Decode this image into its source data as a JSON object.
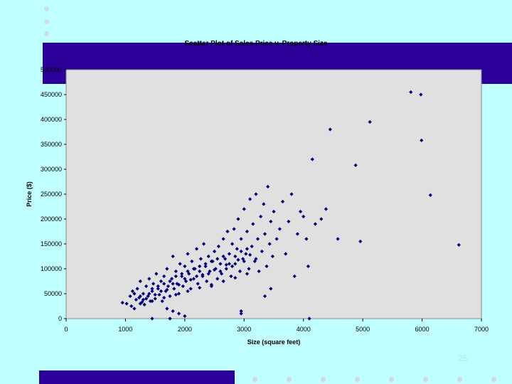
{
  "slide": {
    "page_number": "25",
    "background_color": "#c0ffff",
    "accent_color": "#2a0099"
  },
  "chart_data": {
    "type": "scatter",
    "title": "Scatter Plot of Sales Price v. Property Size",
    "xlabel": "Size (square feet)",
    "ylabel": "Price ($)",
    "xlim": [
      0,
      7000
    ],
    "ylim": [
      0,
      500000
    ],
    "x_ticks": [
      "0",
      "1000",
      "2000",
      "3000",
      "4000",
      "5000",
      "6000",
      "7000"
    ],
    "y_ticks": [
      "0",
      "50000",
      "100000",
      "150000",
      "200000",
      "250000",
      "300000",
      "350000",
      "400000",
      "450000",
      "500000"
    ],
    "marker_color": "#000080",
    "plot_background": "#e0e0e0",
    "grid": false,
    "legend": "none",
    "points": [
      [
        950,
        32000
      ],
      [
        1020,
        30000
      ],
      [
        1080,
        45000
      ],
      [
        1100,
        25000
      ],
      [
        1120,
        55000
      ],
      [
        1150,
        20000
      ],
      [
        1180,
        38000
      ],
      [
        1200,
        60000
      ],
      [
        1230,
        42000
      ],
      [
        1250,
        75000
      ],
      [
        1280,
        33000
      ],
      [
        1300,
        50000
      ],
      [
        1320,
        28000
      ],
      [
        1350,
        65000
      ],
      [
        1380,
        45000
      ],
      [
        1400,
        80000
      ],
      [
        1420,
        35000
      ],
      [
        1450,
        55000
      ],
      [
        1470,
        70000
      ],
      [
        1500,
        40000
      ],
      [
        1520,
        90000
      ],
      [
        1550,
        60000
      ],
      [
        1570,
        48000
      ],
      [
        1600,
        75000
      ],
      [
        1620,
        35000
      ],
      [
        1650,
        85000
      ],
      [
        1680,
        55000
      ],
      [
        1700,
        100000
      ],
      [
        1720,
        65000
      ],
      [
        1750,
        45000
      ],
      [
        1780,
        80000
      ],
      [
        1800,
        125000
      ],
      [
        1820,
        60000
      ],
      [
        1850,
        95000
      ],
      [
        1870,
        70000
      ],
      [
        1900,
        50000
      ],
      [
        1920,
        110000
      ],
      [
        1950,
        85000
      ],
      [
        1970,
        65000
      ],
      [
        2000,
        105000
      ],
      [
        2020,
        75000
      ],
      [
        2050,
        130000
      ],
      [
        2070,
        90000
      ],
      [
        2100,
        60000
      ],
      [
        2120,
        115000
      ],
      [
        2150,
        80000
      ],
      [
        2170,
        100000
      ],
      [
        2200,
        140000
      ],
      [
        2220,
        70000
      ],
      [
        2250,
        95000
      ],
      [
        2270,
        120000
      ],
      [
        2300,
        85000
      ],
      [
        2320,
        150000
      ],
      [
        2350,
        105000
      ],
      [
        2370,
        75000
      ],
      [
        2400,
        125000
      ],
      [
        2420,
        95000
      ],
      [
        2450,
        65000
      ],
      [
        2470,
        115000
      ],
      [
        2500,
        135000
      ],
      [
        2520,
        100000
      ],
      [
        2550,
        80000
      ],
      [
        2570,
        145000
      ],
      [
        2600,
        110000
      ],
      [
        2620,
        90000
      ],
      [
        2650,
        160000
      ],
      [
        2680,
        120000
      ],
      [
        2700,
        100000
      ],
      [
        2720,
        175000
      ],
      [
        2750,
        130000
      ],
      [
        2780,
        85000
      ],
      [
        2800,
        150000
      ],
      [
        2830,
        180000
      ],
      [
        2850,
        110000
      ],
      [
        2880,
        140000
      ],
      [
        2900,
        200000
      ],
      [
        2930,
        95000
      ],
      [
        2950,
        160000
      ],
      [
        2980,
        120000
      ],
      [
        3000,
        220000
      ],
      [
        3030,
        130000
      ],
      [
        3050,
        175000
      ],
      [
        3080,
        100000
      ],
      [
        3100,
        240000
      ],
      [
        3130,
        145000
      ],
      [
        3150,
        190000
      ],
      [
        3180,
        115000
      ],
      [
        3200,
        250000
      ],
      [
        3230,
        160000
      ],
      [
        3250,
        95000
      ],
      [
        3280,
        205000
      ],
      [
        3300,
        135000
      ],
      [
        3330,
        230000
      ],
      [
        3350,
        170000
      ],
      [
        3380,
        105000
      ],
      [
        3400,
        265000
      ],
      [
        3430,
        150000
      ],
      [
        3450,
        195000
      ],
      [
        3480,
        125000
      ],
      [
        3500,
        215000
      ],
      [
        3550,
        160000
      ],
      [
        3600,
        180000
      ],
      [
        3650,
        235000
      ],
      [
        3700,
        130000
      ],
      [
        3750,
        195000
      ],
      [
        3800,
        250000
      ],
      [
        3850,
        85000
      ],
      [
        3900,
        170000
      ],
      [
        3950,
        215000
      ],
      [
        4000,
        205000
      ],
      [
        4050,
        160000
      ],
      [
        4080,
        105000
      ],
      [
        4100,
        0
      ],
      [
        4150,
        320000
      ],
      [
        4200,
        190000
      ],
      [
        4300,
        200000
      ],
      [
        4380,
        220000
      ],
      [
        4450,
        380000
      ],
      [
        4580,
        160000
      ],
      [
        4880,
        308000
      ],
      [
        4960,
        155000
      ],
      [
        5120,
        395000
      ],
      [
        5810,
        455000
      ],
      [
        5980,
        450000
      ],
      [
        5990,
        358000
      ],
      [
        6140,
        248000
      ],
      [
        6620,
        148000
      ],
      [
        1150,
        50000
      ],
      [
        1250,
        45000
      ],
      [
        1350,
        40000
      ],
      [
        1450,
        60000
      ],
      [
        1550,
        65000
      ],
      [
        1650,
        70000
      ],
      [
        1750,
        75000
      ],
      [
        1850,
        85000
      ],
      [
        1950,
        90000
      ],
      [
        2050,
        95000
      ],
      [
        2150,
        100000
      ],
      [
        2250,
        105000
      ],
      [
        2350,
        110000
      ],
      [
        2450,
        115000
      ],
      [
        2550,
        120000
      ],
      [
        2650,
        125000
      ],
      [
        2750,
        110000
      ],
      [
        2850,
        125000
      ],
      [
        2950,
        135000
      ],
      [
        3050,
        140000
      ],
      [
        1400,
        50000
      ],
      [
        1600,
        55000
      ],
      [
        1800,
        70000
      ],
      [
        2000,
        80000
      ],
      [
        2200,
        85000
      ],
      [
        2400,
        90000
      ],
      [
        2600,
        95000
      ],
      [
        2800,
        105000
      ],
      [
        3000,
        115000
      ],
      [
        3200,
        120000
      ],
      [
        1300,
        38000
      ],
      [
        1500,
        48000
      ],
      [
        1700,
        58000
      ],
      [
        1900,
        68000
      ],
      [
        2100,
        78000
      ],
      [
        2300,
        88000
      ],
      [
        2500,
        98000
      ],
      [
        2700,
        108000
      ],
      [
        2900,
        118000
      ],
      [
        3100,
        128000
      ],
      [
        1250,
        30000
      ],
      [
        1450,
        35000
      ],
      [
        1650,
        42000
      ],
      [
        1850,
        48000
      ],
      [
        2050,
        55000
      ],
      [
        2250,
        62000
      ],
      [
        2450,
        68000
      ],
      [
        2650,
        75000
      ],
      [
        2850,
        82000
      ],
      [
        3050,
        90000
      ],
      [
        1700,
        20000
      ],
      [
        1800,
        15000
      ],
      [
        1900,
        10000
      ],
      [
        2000,
        5000
      ],
      [
        1450,
        0
      ],
      [
        1750,
        0
      ],
      [
        2950,
        10000
      ],
      [
        2950,
        15000
      ],
      [
        3450,
        60000
      ],
      [
        3350,
        45000
      ]
    ]
  }
}
